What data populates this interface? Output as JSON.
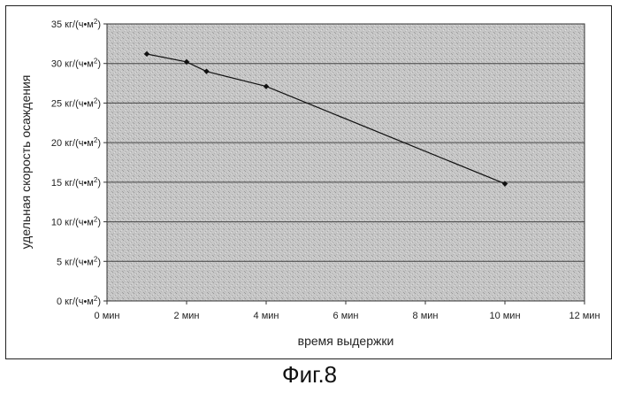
{
  "chart_data": {
    "type": "line",
    "xlabel": "время выдержки",
    "ylabel": "удельная скорость осаждения",
    "xlim": [
      0,
      12
    ],
    "ylim": [
      0,
      35
    ],
    "x_ticks": [
      0,
      2,
      4,
      6,
      8,
      10,
      12
    ],
    "x_tick_labels": [
      "0 мин",
      "2 мин",
      "4 мин",
      "6 мин",
      "8 мин",
      "10 мин",
      "12 мин"
    ],
    "y_ticks": [
      0,
      5,
      10,
      15,
      20,
      25,
      30,
      35
    ],
    "y_tick_labels": [
      "0 кг/(ч•м2)",
      "5 кг/(ч•м2)",
      "10 кг/(ч•м2)",
      "15 кг/(ч•м2)",
      "20 кг/(ч•м2)",
      "25 кг/(ч•м2)",
      "30 кг/(ч•м2)",
      "35 кг/(ч•м2)"
    ],
    "grid": "horizontal",
    "legend": "none",
    "series": [
      {
        "x": [
          1,
          2,
          2.5,
          4,
          10
        ],
        "y": [
          31.2,
          30.2,
          29.0,
          27.1,
          14.8
        ]
      }
    ]
  },
  "caption": "Фиг.8",
  "colors": {
    "plot_background": "#c4c4c4",
    "line": "#111111",
    "grid": "#444444"
  }
}
